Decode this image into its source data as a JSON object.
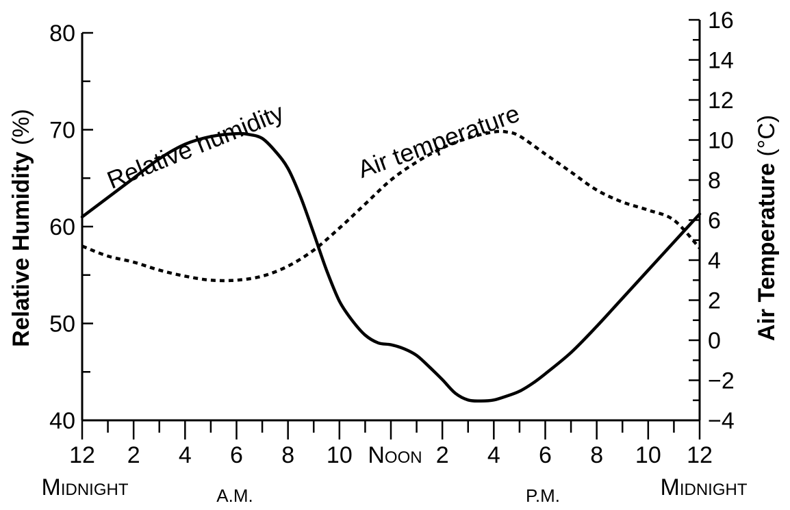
{
  "chart_data": {
    "type": "line",
    "x_tick_labels": [
      "12",
      "2",
      "4",
      "6",
      "8",
      "10",
      "Noon",
      "2",
      "4",
      "6",
      "8",
      "10",
      "12"
    ],
    "x_tick_hours": [
      0,
      2,
      4,
      6,
      8,
      10,
      12,
      14,
      16,
      18,
      20,
      22,
      24
    ],
    "x_range": [
      0,
      24
    ],
    "midnight_left_label": "Midnight",
    "midnight_right_label": "Midnight",
    "am_label": "A.M.",
    "pm_label": "P.M.",
    "y_left": {
      "label": "Relative Humidity",
      "unit": "(%)",
      "range": [
        40,
        80
      ],
      "ticks": [
        "40",
        "50",
        "60",
        "70",
        "80"
      ]
    },
    "y_right": {
      "label": "Air Temperature",
      "unit": "(°C)",
      "range": [
        -4,
        16
      ],
      "ticks": [
        "-4",
        "-2",
        "0",
        "2",
        "4",
        "6",
        "8",
        "10",
        "12",
        "14",
        "16"
      ]
    },
    "series": [
      {
        "name": "Relative humidity",
        "axis": "left",
        "style": "solid",
        "x": [
          0,
          1,
          2,
          3,
          4,
          5,
          6,
          6.5,
          7,
          7.5,
          8,
          8.5,
          9,
          9.5,
          10,
          10.5,
          11,
          11.5,
          12,
          12.5,
          13,
          13.5,
          14,
          14.5,
          15,
          15.5,
          16,
          16.5,
          17,
          17.5,
          18,
          19,
          20,
          21,
          22,
          23,
          24
        ],
        "y": [
          61,
          63,
          65,
          67,
          68.5,
          69.3,
          69.6,
          69.5,
          69.1,
          67.8,
          66,
          63,
          59.3,
          55.5,
          52.3,
          50.3,
          48.8,
          48,
          47.8,
          47.4,
          46.7,
          45.5,
          44.2,
          42.8,
          42.1,
          42,
          42.1,
          42.5,
          43,
          43.8,
          44.8,
          47,
          49.7,
          52.6,
          55.5,
          58.4,
          61.3
        ]
      },
      {
        "name": "Air temperature",
        "axis": "right",
        "style": "dotted",
        "x": [
          0,
          1,
          2,
          3,
          4,
          5,
          6,
          7,
          8,
          9,
          10,
          11,
          12,
          13,
          14,
          15,
          16,
          16.5,
          17,
          18,
          19,
          20,
          21,
          22,
          23,
          24
        ],
        "y": [
          4.7,
          4.2,
          3.9,
          3.5,
          3.2,
          3,
          3,
          3.2,
          3.7,
          4.5,
          5.6,
          6.8,
          8,
          8.9,
          9.6,
          10.1,
          10.4,
          10.4,
          10.2,
          9.3,
          8.4,
          7.5,
          6.9,
          6.5,
          6,
          4.6
        ]
      }
    ]
  }
}
